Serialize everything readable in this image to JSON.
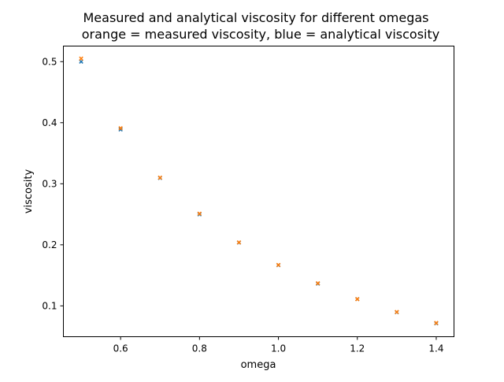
{
  "chart_data": {
    "type": "scatter",
    "title": "Measured and analytical viscosity for different omegas",
    "subtitle": "orange = measured viscosity, blue = analytical viscosity",
    "xlabel": "omega",
    "ylabel": "viscosity",
    "xlim": [
      0.455,
      1.445
    ],
    "ylim": [
      0.0495,
      0.5255
    ],
    "xticks": [
      "0.6",
      "0.8",
      "1.0",
      "1.2",
      "1.4"
    ],
    "yticks": [
      "0.1",
      "0.2",
      "0.3",
      "0.4",
      "0.5"
    ],
    "grid": false,
    "marker": "x",
    "series": [
      {
        "color": "#1f77b4",
        "x": [
          0.5,
          0.6,
          0.7,
          0.8,
          0.9,
          1.0,
          1.1,
          1.2,
          1.3,
          1.4
        ],
        "y": [
          0.5,
          0.3889,
          0.3095,
          0.25,
          0.2037,
          0.1667,
          0.1364,
          0.1111,
          0.0897,
          0.0714
        ]
      },
      {
        "color": "#ff7f0e",
        "x": [
          0.5,
          0.6,
          0.7,
          0.8,
          0.9,
          1.0,
          1.1,
          1.2,
          1.3,
          1.4
        ],
        "y": [
          0.505,
          0.391,
          0.31,
          0.251,
          0.204,
          0.167,
          0.137,
          0.111,
          0.09,
          0.072
        ]
      }
    ]
  }
}
